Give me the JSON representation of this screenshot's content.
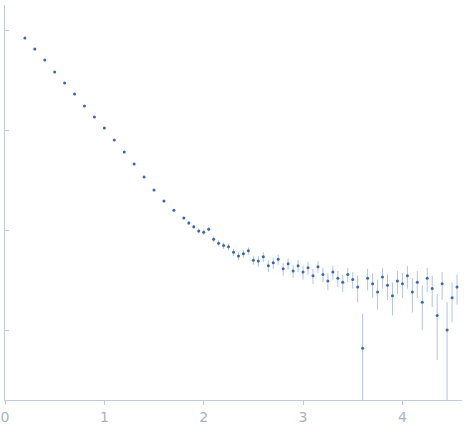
{
  "chart_data": {
    "type": "scatter",
    "marker": "circle",
    "color": "#3a67b5",
    "log": "y",
    "grid": false,
    "tick_labels": "x",
    "xlim": [
      0,
      4.6
    ],
    "xticks": [
      0,
      1,
      2,
      3,
      4
    ],
    "ylim": [
      0.0002,
      1.78
    ],
    "yticks": [
      0.001,
      0.01,
      0.1,
      1
    ],
    "x": [
      0.2,
      0.3,
      0.4,
      0.5,
      0.6,
      0.7,
      0.8,
      0.9,
      1.0,
      1.1,
      1.2,
      1.3,
      1.4,
      1.5,
      1.6,
      1.7,
      1.8,
      1.85,
      1.9,
      1.95,
      2.0,
      2.05,
      2.1,
      2.15,
      2.2,
      2.25,
      2.3,
      2.35,
      2.4,
      2.45,
      2.5,
      2.55,
      2.6,
      2.65,
      2.7,
      2.75,
      2.8,
      2.85,
      2.9,
      2.95,
      3.0,
      3.05,
      3.1,
      3.15,
      3.2,
      3.25,
      3.3,
      3.35,
      3.4,
      3.45,
      3.5,
      3.55,
      3.6,
      3.65,
      3.7,
      3.75,
      3.8,
      3.85,
      3.9,
      3.95,
      4.0,
      4.05,
      4.1,
      4.15,
      4.2,
      4.25,
      4.3,
      4.35,
      4.4,
      4.45,
      4.5,
      4.55
    ],
    "values": [
      0.832,
      0.646,
      0.501,
      0.38,
      0.295,
      0.229,
      0.174,
      0.135,
      0.105,
      0.0794,
      0.0603,
      0.0457,
      0.0339,
      0.0251,
      0.0195,
      0.0158,
      0.0132,
      0.0118,
      0.0108,
      0.0098,
      0.0095,
      0.0102,
      0.0081,
      0.0074,
      0.007,
      0.0068,
      0.006,
      0.0055,
      0.0058,
      0.0062,
      0.005,
      0.0049,
      0.0054,
      0.0044,
      0.0047,
      0.0051,
      0.0041,
      0.0046,
      0.0039,
      0.0044,
      0.0038,
      0.0042,
      0.0035,
      0.0043,
      0.0036,
      0.0031,
      0.0038,
      0.0033,
      0.003,
      0.0036,
      0.0032,
      0.0027,
      0.00066,
      0.0033,
      0.0029,
      0.0024,
      0.0034,
      0.0028,
      0.0022,
      0.0031,
      0.0029,
      0.0035,
      0.0024,
      0.003,
      0.0019,
      0.0033,
      0.0026,
      0.0014,
      0.0029,
      0.001,
      0.0021,
      0.0027
    ],
    "errors": [
      0.004,
      0.003,
      0.002,
      0.0015,
      0.0012,
      0.0009,
      0.0007,
      0.0006,
      0.0005,
      0.0004,
      0.0004,
      0.0003,
      0.0003,
      0.0003,
      0.0003,
      0.0003,
      0.0004,
      0.0005,
      0.0005,
      0.0005,
      0.0005,
      0.0005,
      0.0005,
      0.0005,
      0.0005,
      0.0005,
      0.0005,
      0.0005,
      0.0005,
      0.0005,
      0.0005,
      0.0006,
      0.0006,
      0.0006,
      0.0006,
      0.0006,
      0.0006,
      0.0006,
      0.0006,
      0.0006,
      0.0006,
      0.0006,
      0.0006,
      0.0006,
      0.0006,
      0.0006,
      0.0006,
      0.0006,
      0.0006,
      0.0006,
      0.0006,
      0.0008,
      0.0008,
      0.0008,
      0.0008,
      0.0008,
      0.0008,
      0.0008,
      0.0008,
      0.0008,
      0.0008,
      0.0009,
      0.0009,
      0.0009,
      0.0009,
      0.0009,
      0.0009,
      0.0009,
      0.0009,
      0.0009,
      0.0009,
      0.0009
    ]
  }
}
